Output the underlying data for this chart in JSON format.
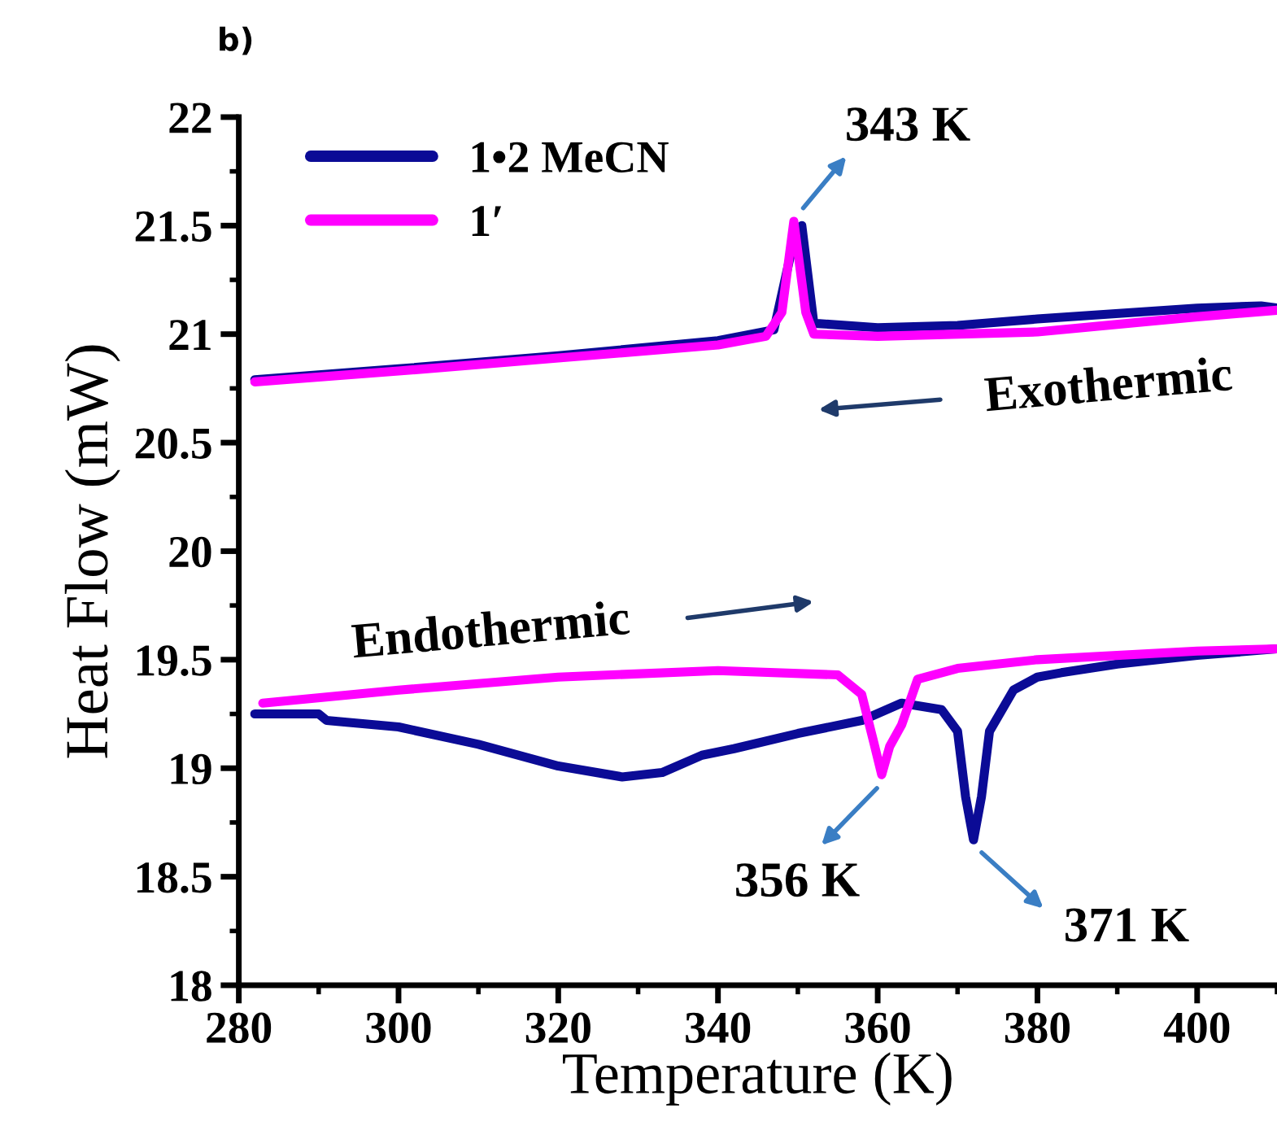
{
  "chart_data": {
    "type": "line",
    "title": "b)",
    "xlabel": "Temperature (K)",
    "ylabel": "Heat Flow (mW)",
    "xlim": [
      280,
      410
    ],
    "xticks": [
      280,
      300,
      320,
      340,
      360,
      380,
      400
    ],
    "ylim": [
      18,
      22
    ],
    "yticks": [
      18,
      {
        "value": 18.5,
        "label": "18.5"
      },
      19,
      {
        "value": 19.5,
        "label": "19.5"
      },
      20,
      {
        "value": 20.5,
        "label": "20.5"
      },
      21,
      {
        "value": 21.5,
        "label": "21.5"
      },
      22
    ],
    "grid": false,
    "legend": "top left",
    "marker": "none",
    "line_style": "solid",
    "series": [
      {
        "name": "1•2 MeCN",
        "color": "#0b0b96",
        "x": [
          282,
          300,
          320,
          340,
          347,
          349,
          350.5,
          352,
          360,
          370,
          380,
          400,
          408,
          410
        ],
        "values": [
          20.79,
          20.84,
          20.9,
          20.97,
          21.02,
          21.35,
          21.5,
          21.05,
          21.03,
          21.04,
          21.07,
          21.12,
          21.13,
          21.12
        ]
      },
      {
        "name": "1′",
        "color": "#ff00ff",
        "x": [
          282,
          300,
          320,
          340,
          346,
          348,
          349.5,
          351,
          352,
          360,
          380,
          400,
          410
        ],
        "values": [
          20.78,
          20.83,
          20.89,
          20.95,
          20.99,
          21.1,
          21.52,
          21.1,
          21.0,
          20.99,
          21.01,
          21.08,
          21.11
        ]
      },
      {
        "color": "#0b0b96",
        "x": [
          282,
          290,
          291,
          300,
          310,
          320,
          328,
          333,
          338,
          342,
          350,
          358,
          363,
          368,
          370,
          371,
          372,
          373,
          374,
          377,
          380,
          383,
          390,
          400,
          410
        ],
        "values": [
          19.25,
          19.25,
          19.22,
          19.19,
          19.11,
          19.01,
          18.96,
          18.98,
          19.06,
          19.09,
          19.16,
          19.22,
          19.3,
          19.27,
          19.17,
          18.87,
          18.67,
          18.87,
          19.17,
          19.36,
          19.42,
          19.44,
          19.48,
          19.52,
          19.55
        ]
      },
      {
        "color": "#ff00ff",
        "x": [
          283,
          300,
          320,
          340,
          355,
          358,
          359.5,
          360.5,
          361.5,
          363,
          365,
          370,
          380,
          400,
          410
        ],
        "values": [
          19.3,
          19.36,
          19.42,
          19.45,
          19.43,
          19.34,
          19.12,
          18.97,
          19.1,
          19.2,
          19.41,
          19.46,
          19.5,
          19.54,
          19.55
        ]
      }
    ],
    "annotations": [
      {
        "text": "343 K",
        "x": 349.5,
        "y": 21.52
      },
      "Exothermic",
      "Endothermic",
      {
        "text": "356 K",
        "x": 360.5,
        "y": 18.96
      },
      {
        "text": "371 K",
        "x": 372,
        "y": 18.67
      }
    ]
  }
}
